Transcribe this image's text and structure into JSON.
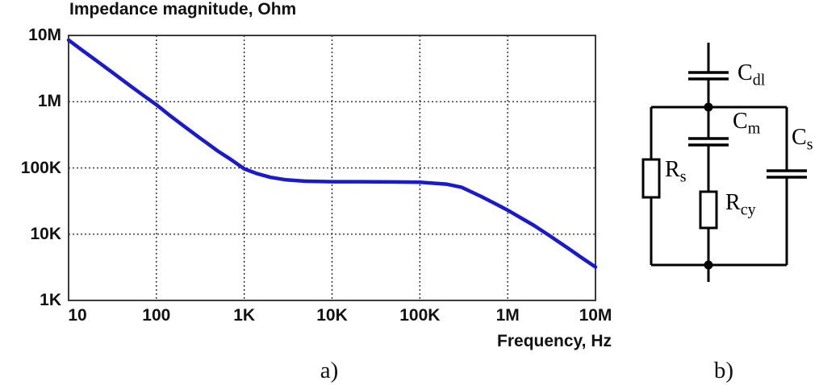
{
  "figure": {
    "caption_a": "a)",
    "caption_b": "b)"
  },
  "chart_data": {
    "type": "line",
    "title": "Impedance magnitude, Ohm",
    "xlabel": "Frequency, Hz",
    "ylabel": "Impedance magnitude, Ohm",
    "x_scale": "log",
    "y_scale": "log",
    "xlim": [
      10,
      10000000
    ],
    "ylim": [
      1000,
      10000000
    ],
    "grid": "dashed",
    "x_ticks": [
      {
        "value": 10,
        "label": "10"
      },
      {
        "value": 100,
        "label": "100"
      },
      {
        "value": 1000,
        "label": "1K"
      },
      {
        "value": 10000,
        "label": "10K"
      },
      {
        "value": 100000,
        "label": "100K"
      },
      {
        "value": 1000000,
        "label": "1M"
      },
      {
        "value": 10000000,
        "label": "10M"
      }
    ],
    "y_ticks": [
      {
        "value": 1000,
        "label": "1K"
      },
      {
        "value": 10000,
        "label": "10K"
      },
      {
        "value": 100000,
        "label": "100K"
      },
      {
        "value": 1000000,
        "label": "1M"
      },
      {
        "value": 10000000,
        "label": "10M"
      }
    ],
    "series": [
      {
        "name": "impedance-magnitude",
        "color": "#1a1acd",
        "x": [
          10,
          14,
          20,
          30,
          50,
          70,
          100,
          140,
          200,
          300,
          500,
          700,
          1000,
          1400,
          2000,
          3000,
          5000,
          10000,
          20000,
          50000,
          100000,
          200000,
          300000,
          500000,
          700000,
          1000000,
          2000000,
          3000000,
          5000000,
          7000000,
          10000000
        ],
        "y": [
          8500000,
          6100000,
          4300000,
          2900000,
          1750000,
          1260000,
          900000,
          630000,
          440000,
          295000,
          180000,
          135000,
          97000,
          82000,
          72000,
          66000,
          63000,
          62000,
          62000,
          61500,
          61000,
          57000,
          51000,
          37000,
          29500,
          23000,
          13500,
          9500,
          6000,
          4400,
          3200
        ]
      }
    ]
  },
  "circuit": {
    "components": [
      {
        "id": "cdl",
        "type": "capacitor",
        "label_main": "C",
        "label_sub": "dl"
      },
      {
        "id": "cm",
        "type": "capacitor",
        "label_main": "C",
        "label_sub": "m"
      },
      {
        "id": "cs",
        "type": "capacitor",
        "label_main": "C",
        "label_sub": "s"
      },
      {
        "id": "rs",
        "type": "resistor",
        "label_main": "R",
        "label_sub": "s"
      },
      {
        "id": "rcy",
        "type": "resistor",
        "label_main": "R",
        "label_sub": "cy"
      }
    ]
  },
  "colors": {
    "curve": "#1a1acd",
    "frame": "#3c3c3c",
    "grid": "#1a1a1a",
    "circuit": "#000000",
    "background": "#ffffff"
  }
}
